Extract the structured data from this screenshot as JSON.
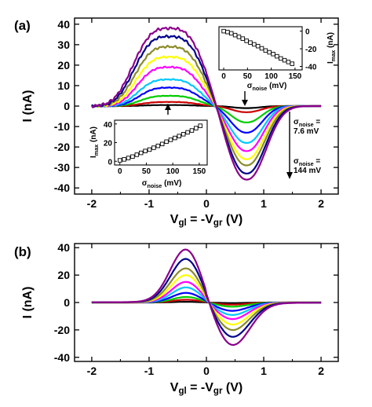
{
  "figure": {
    "panels": [
      {
        "panel_label": "(a)",
        "xlabel": "V<sub>gl</sub> = -V<sub>gr</sub> (V)",
        "ylabel": "I (nA)",
        "x_ticks": [
          "-2",
          "-1",
          "0",
          "1",
          "2"
        ],
        "y_ticks": [
          "40",
          "30",
          "20",
          "10",
          "0",
          "-10",
          "-20",
          "-30",
          "-40"
        ],
        "annotations": {
          "low_noise": "σ<sub>noise</sub> =\n7.6 mV",
          "high_noise": "σ<sub>noise</sub> =\n144 mV"
        }
      },
      {
        "panel_label": "(b)",
        "xlabel": "V<sub>gl</sub> = -V<sub>gr</sub> (V)",
        "ylabel": "I (nA)",
        "x_ticks": [
          "-2",
          "-1",
          "0",
          "1",
          "2"
        ],
        "y_ticks": [
          "40",
          "20",
          "0",
          "-20",
          "-40"
        ]
      }
    ],
    "insets": [
      {
        "id": "inset-top-right",
        "xlabel": "σ<sub>noise</sub> (mV)",
        "ylabel": "I<sub>max</sub> (nA)",
        "x_ticks": [
          "0",
          "50",
          "100",
          "150"
        ],
        "y_ticks": [
          "0",
          "-20",
          "-40"
        ]
      },
      {
        "id": "inset-bottom-left",
        "xlabel": "σ<sub>noise</sub> (mV)",
        "ylabel": "I<sub>max</sub> (nA)",
        "x_ticks": [
          "0",
          "50",
          "100",
          "150"
        ],
        "y_ticks": [
          "40",
          "20",
          "0"
        ]
      }
    ]
  },
  "chart_data": [
    {
      "type": "line",
      "panel": "(a)",
      "xlim": [
        -2.3,
        2.3
      ],
      "ylim": [
        -43,
        43
      ],
      "grid": false,
      "legend": "none",
      "series_colors": [
        "#000000",
        "#cc0000",
        "#00cc00",
        "#0000ff",
        "#00c8ff",
        "#ff00ff",
        "#ffff00",
        "#8b8b2a",
        "#00008b",
        "#8b008b"
      ],
      "peak_position_V": -0.65,
      "peak_values_nA": [
        0.5,
        2,
        5,
        9,
        13,
        19,
        24,
        29,
        34,
        38
      ],
      "valley_position_V": 0.7,
      "valley_values_nA": [
        -1,
        -3,
        -8,
        -13,
        -18,
        -22,
        -26,
        -29,
        -33,
        -36
      ]
    },
    {
      "type": "line",
      "panel": "(b)",
      "xlim": [
        -2.3,
        2.3
      ],
      "ylim": [
        -43,
        43
      ],
      "grid": false,
      "legend": "none",
      "series_colors": [
        "#000000",
        "#cc0000",
        "#00cc00",
        "#0000ff",
        "#00c8ff",
        "#ff00ff",
        "#ffff00",
        "#8b8b2a",
        "#00008b",
        "#8b008b"
      ],
      "peak_position_V": -0.35,
      "peak_values_nA": [
        0.5,
        2,
        4,
        7,
        11,
        15,
        20,
        25,
        32,
        39
      ],
      "valley_position_V": 0.45,
      "valley_values_nA": [
        -0.4,
        -1.5,
        -3,
        -6,
        -9,
        -12,
        -16,
        -20,
        -25,
        -31
      ]
    },
    {
      "type": "scatter",
      "inset": "top-right",
      "xlabel": "σnoise (mV)",
      "ylabel": "Imax (nA)",
      "xlim": [
        -10,
        165
      ],
      "ylim": [
        -44,
        5
      ],
      "x": [
        0,
        8,
        16,
        24,
        32,
        40,
        48,
        56,
        64,
        72,
        80,
        88,
        96,
        104,
        112,
        120,
        128,
        136,
        144
      ],
      "y": [
        0,
        -1,
        -2.5,
        -4.5,
        -6.5,
        -8.5,
        -11,
        -13,
        -15,
        -17,
        -19.5,
        -22,
        -24,
        -26,
        -28.5,
        -31,
        -33,
        -35,
        -37
      ]
    },
    {
      "type": "scatter",
      "inset": "bottom-left",
      "xlabel": "σnoise (mV)",
      "ylabel": "Imax (nA)",
      "xlim": [
        -10,
        165
      ],
      "ylim": [
        -4,
        44
      ],
      "x": [
        0,
        8,
        16,
        24,
        32,
        40,
        48,
        56,
        64,
        72,
        80,
        88,
        96,
        104,
        112,
        120,
        128,
        136,
        144,
        152
      ],
      "y": [
        1,
        2,
        3.5,
        5,
        7,
        9,
        11,
        12.5,
        14.5,
        16.5,
        18.5,
        21,
        23,
        25,
        27,
        29,
        31,
        33,
        35.5,
        38
      ]
    }
  ]
}
